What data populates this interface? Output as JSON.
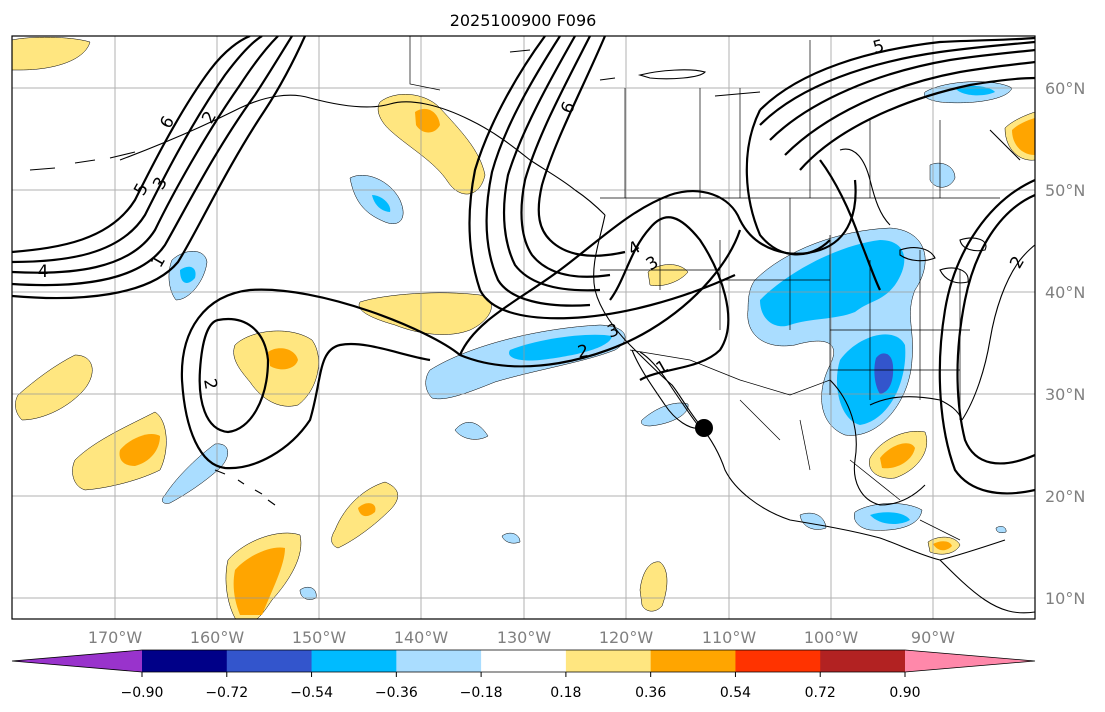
{
  "title": "2025100900 F096",
  "axes": {
    "lon_labels": [
      "170°W",
      "160°W",
      "150°W",
      "140°W",
      "130°W",
      "120°W",
      "110°W",
      "100°W",
      "90°W"
    ],
    "lat_labels": [
      "60°N",
      "50°N",
      "40°N",
      "30°N",
      "20°N",
      "10°N"
    ]
  },
  "colorbar": {
    "ticks": [
      "−0.90",
      "−0.72",
      "−0.54",
      "−0.36",
      "−0.18",
      "0.18",
      "0.36",
      "0.54",
      "0.72",
      "0.90"
    ],
    "colors": [
      "#9933cc",
      "#000088",
      "#3355cc",
      "#00bbff",
      "#aaddff",
      "#ffffff",
      "#ffe680",
      "#ffa500",
      "#ff3300",
      "#b22222",
      "#ff88aa"
    ]
  },
  "contour_labels": [
    "6",
    "2",
    "5",
    "3",
    "1",
    "4",
    "2",
    "6",
    "5",
    "4",
    "3",
    "2",
    "3",
    "2",
    "1"
  ],
  "marker": {
    "name": "black-dot"
  }
}
